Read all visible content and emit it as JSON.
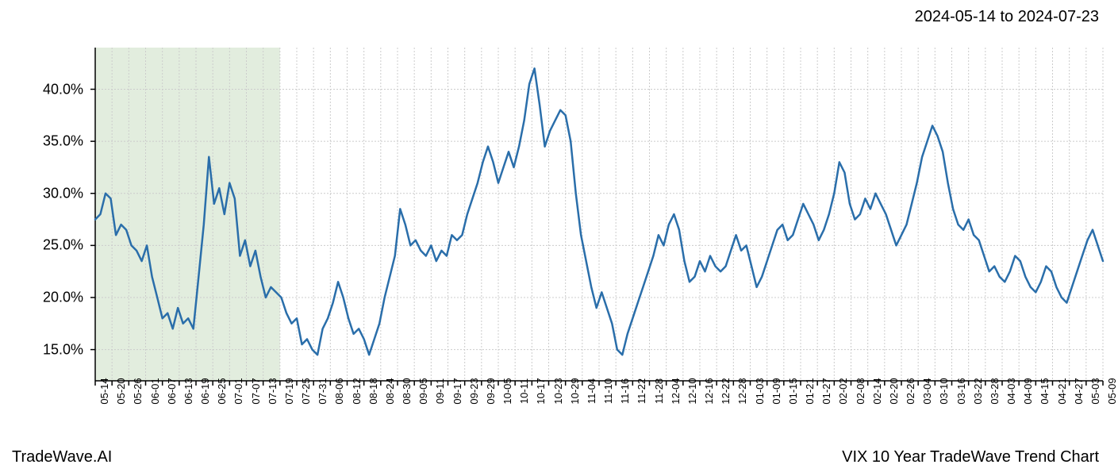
{
  "header": {
    "date_range": "2024-05-14 to 2024-07-23"
  },
  "footer": {
    "brand_left": "TradeWave.AI",
    "title_right": "VIX 10 Year TradeWave Trend Chart"
  },
  "chart": {
    "type": "line",
    "background_color": "#ffffff",
    "grid_color": "#cccccc",
    "grid_dash": "2,2",
    "axis_color": "#000000",
    "line_color": "#2a6eaa",
    "line_width": 2.5,
    "highlight_fill": "#d5e6d0",
    "highlight_opacity": 0.7,
    "highlight_start_index": 0,
    "highlight_end_index": 11,
    "ylim": [
      12,
      44
    ],
    "ytick_values": [
      15,
      20,
      25,
      30,
      35,
      40
    ],
    "ytick_labels": [
      "15.0%",
      "20.0%",
      "25.0%",
      "30.0%",
      "35.0%",
      "40.0%"
    ],
    "x_labels": [
      "05-14",
      "05-20",
      "05-26",
      "06-01",
      "06-07",
      "06-13",
      "06-19",
      "06-25",
      "07-01",
      "07-07",
      "07-13",
      "07-19",
      "07-25",
      "07-31",
      "08-06",
      "08-12",
      "08-18",
      "08-24",
      "08-30",
      "09-05",
      "09-11",
      "09-17",
      "09-23",
      "09-29",
      "10-05",
      "10-11",
      "10-17",
      "10-23",
      "10-29",
      "11-04",
      "11-10",
      "11-16",
      "11-22",
      "11-28",
      "12-04",
      "12-10",
      "12-16",
      "12-22",
      "12-28",
      "01-03",
      "01-09",
      "01-15",
      "01-21",
      "01-27",
      "02-02",
      "02-08",
      "02-14",
      "02-20",
      "02-26",
      "03-04",
      "03-10",
      "03-16",
      "03-22",
      "03-28",
      "04-03",
      "04-09",
      "04-15",
      "04-21",
      "04-27",
      "05-03",
      "05-09"
    ],
    "data_points": [
      27.5,
      28.0,
      30.0,
      29.5,
      26.0,
      27.0,
      26.5,
      25.0,
      24.5,
      23.5,
      25.0,
      22.0,
      20.0,
      18.0,
      18.5,
      17.0,
      19.0,
      17.5,
      18.0,
      17.0,
      22.0,
      27.0,
      33.5,
      29.0,
      30.5,
      28.0,
      31.0,
      29.5,
      24.0,
      25.5,
      23.0,
      24.5,
      22.0,
      20.0,
      21.0,
      20.5,
      20.0,
      18.5,
      17.5,
      18.0,
      15.5,
      16.0,
      15.0,
      14.5,
      17.0,
      18.0,
      19.5,
      21.5,
      20.0,
      18.0,
      16.5,
      17.0,
      16.0,
      14.5,
      16.0,
      17.5,
      20.0,
      22.0,
      24.0,
      28.5,
      27.0,
      25.0,
      25.5,
      24.5,
      24.0,
      25.0,
      23.5,
      24.5,
      24.0,
      26.0,
      25.5,
      26.0,
      28.0,
      29.5,
      31.0,
      33.0,
      34.5,
      33.0,
      31.0,
      32.5,
      34.0,
      32.5,
      34.5,
      37.0,
      40.5,
      42.0,
      38.5,
      34.5,
      36.0,
      37.0,
      38.0,
      37.5,
      35.0,
      30.0,
      26.0,
      23.5,
      21.0,
      19.0,
      20.5,
      19.0,
      17.5,
      15.0,
      14.5,
      16.5,
      18.0,
      19.5,
      21.0,
      22.5,
      24.0,
      26.0,
      25.0,
      27.0,
      28.0,
      26.5,
      23.5,
      21.5,
      22.0,
      23.5,
      22.5,
      24.0,
      23.0,
      22.5,
      23.0,
      24.5,
      26.0,
      24.5,
      25.0,
      23.0,
      21.0,
      22.0,
      23.5,
      25.0,
      26.5,
      27.0,
      25.5,
      26.0,
      27.5,
      29.0,
      28.0,
      27.0,
      25.5,
      26.5,
      28.0,
      30.0,
      33.0,
      32.0,
      29.0,
      27.5,
      28.0,
      29.5,
      28.5,
      30.0,
      29.0,
      28.0,
      26.5,
      25.0,
      26.0,
      27.0,
      29.0,
      31.0,
      33.5,
      35.0,
      36.5,
      35.5,
      34.0,
      31.0,
      28.5,
      27.0,
      26.5,
      27.5,
      26.0,
      25.5,
      24.0,
      22.5,
      23.0,
      22.0,
      21.5,
      22.5,
      24.0,
      23.5,
      22.0,
      21.0,
      20.5,
      21.5,
      23.0,
      22.5,
      21.0,
      20.0,
      19.5,
      21.0,
      22.5,
      24.0,
      25.5,
      26.5,
      25.0,
      23.5
    ],
    "label_fontsize": 18,
    "xlabel_fontsize": 13,
    "title_fontsize": 20
  }
}
